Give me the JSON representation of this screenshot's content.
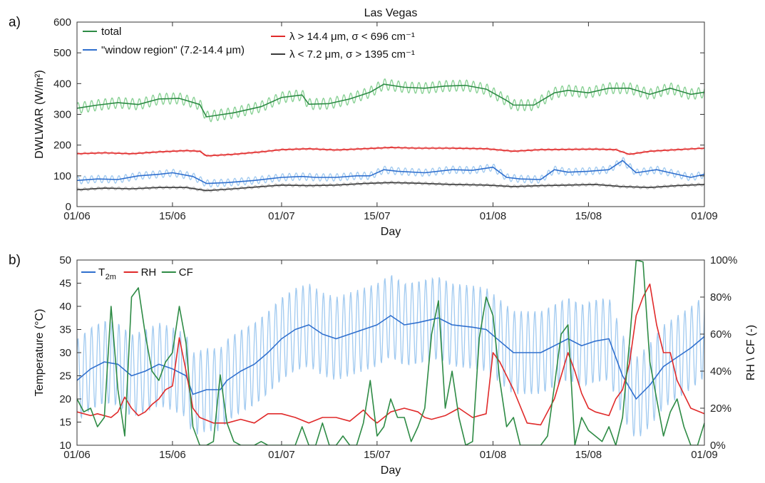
{
  "chart_data": [
    {
      "panel_label": "a)",
      "type": "line",
      "title": "Las Vegas",
      "xlabel": "Day",
      "ylabel": "DWLWAR (W/m²)",
      "xlim": [
        0,
        92
      ],
      "ylim": [
        0,
        600
      ],
      "xticks": [
        0,
        14,
        30,
        44,
        61,
        75,
        92
      ],
      "xticklabels": [
        "01/06",
        "15/06",
        "01/07",
        "15/07",
        "01/08",
        "15/08",
        "01/09"
      ],
      "yticks": [
        0,
        100,
        200,
        300,
        400,
        500,
        600
      ],
      "grid": false,
      "legend_position": "top-left",
      "legend_columns": 2,
      "series": [
        {
          "name": "total",
          "legend_order": 0,
          "color": "#2e8b45",
          "raw_color": "#7fcd8c",
          "raw_amplitude": 18,
          "x": [
            0,
            3,
            6,
            9,
            12,
            15,
            18,
            19,
            23,
            27,
            30,
            33,
            34,
            37,
            40,
            43,
            45,
            48,
            51,
            54,
            57,
            60,
            63,
            64,
            67,
            70,
            72,
            75,
            78,
            81,
            84,
            87,
            90,
            92
          ],
          "values": [
            320,
            330,
            338,
            332,
            350,
            352,
            332,
            292,
            305,
            325,
            355,
            363,
            333,
            335,
            350,
            372,
            398,
            388,
            385,
            392,
            394,
            382,
            345,
            330,
            330,
            370,
            378,
            370,
            385,
            385,
            365,
            385,
            365,
            372
          ]
        },
        {
          "name": "\"window region\" (7.2-14.4 μm)",
          "legend_order": 1,
          "color": "#2f6fce",
          "raw_color": "#9cc7ef",
          "raw_amplitude": 12,
          "x": [
            0,
            3,
            6,
            9,
            12,
            14,
            17,
            19,
            22,
            26,
            30,
            33,
            35,
            38,
            41,
            43,
            45,
            47,
            51,
            55,
            58,
            61,
            63,
            65,
            68,
            70,
            72,
            75,
            78,
            80,
            82,
            85,
            87,
            90,
            92
          ],
          "values": [
            85,
            90,
            88,
            100,
            105,
            110,
            98,
            75,
            78,
            85,
            95,
            98,
            95,
            95,
            100,
            100,
            120,
            115,
            110,
            120,
            118,
            128,
            95,
            90,
            88,
            120,
            112,
            115,
            120,
            150,
            110,
            120,
            110,
            95,
            105
          ]
        },
        {
          "name": "λ > 14.4 μm, σ < 696 cm⁻¹",
          "legend_order": 2,
          "color": "#e02a2a",
          "raw_color": "#f4a9a9",
          "raw_amplitude": 4,
          "x": [
            0,
            4,
            8,
            12,
            16,
            18,
            19,
            23,
            27,
            30,
            34,
            38,
            42,
            46,
            50,
            55,
            60,
            64,
            68,
            72,
            76,
            79,
            81,
            84,
            88,
            92
          ],
          "values": [
            172,
            175,
            172,
            178,
            182,
            180,
            165,
            170,
            178,
            185,
            188,
            184,
            188,
            192,
            190,
            190,
            188,
            180,
            185,
            186,
            187,
            185,
            170,
            180,
            185,
            190
          ]
        },
        {
          "name": "λ < 7.2 μm, σ > 1395 cm⁻¹",
          "legend_order": 3,
          "color": "#3a3a3a",
          "raw_color": "#bbbbbb",
          "raw_amplitude": 5,
          "x": [
            0,
            4,
            8,
            12,
            16,
            19,
            23,
            27,
            30,
            34,
            38,
            42,
            46,
            50,
            55,
            60,
            64,
            68,
            72,
            76,
            80,
            84,
            88,
            92
          ],
          "values": [
            55,
            60,
            58,
            62,
            62,
            52,
            58,
            65,
            70,
            68,
            70,
            75,
            78,
            76,
            72,
            70,
            65,
            68,
            70,
            72,
            65,
            62,
            68,
            72
          ]
        }
      ]
    },
    {
      "panel_label": "b)",
      "type": "line",
      "xlabel": "Day",
      "ylabel": "Temperature (°C)",
      "ylabel_right": "RH \\ CF (-)",
      "xlim": [
        0,
        92
      ],
      "ylim": [
        10,
        50
      ],
      "ylim_right": [
        0,
        100
      ],
      "xticks": [
        0,
        14,
        30,
        44,
        61,
        75,
        92
      ],
      "xticklabels": [
        "01/06",
        "15/06",
        "01/07",
        "15/07",
        "01/08",
        "15/08",
        "01/09"
      ],
      "yticks": [
        10,
        15,
        20,
        25,
        30,
        35,
        40,
        45,
        50
      ],
      "yticks_right": [
        0,
        20,
        40,
        60,
        80,
        100
      ],
      "yticklabels_right": [
        "0%",
        "20%",
        "40%",
        "60%",
        "80%",
        "100%"
      ],
      "grid": false,
      "legend_position": "top-left",
      "legend_columns": 3,
      "series": [
        {
          "name": "T",
          "name_subscript": "2m",
          "axis": "left",
          "color": "#2f6fce",
          "raw_color": "#9cc7ef",
          "raw_amplitude": 9,
          "x": [
            0,
            2,
            4,
            6,
            8,
            10,
            12,
            14,
            16,
            17,
            19,
            21,
            22,
            24,
            26,
            28,
            30,
            32,
            34,
            36,
            38,
            40,
            42,
            44,
            46,
            48,
            50,
            53,
            55,
            58,
            60,
            62,
            64,
            66,
            68,
            70,
            72,
            74,
            76,
            78,
            80,
            82,
            84,
            86,
            88,
            90,
            92
          ],
          "values": [
            24,
            26.5,
            28,
            27.5,
            25,
            26,
            27.5,
            26.5,
            25,
            21,
            22,
            22,
            24,
            26,
            27.5,
            30,
            33,
            35,
            36,
            34,
            33,
            34,
            35,
            36,
            38,
            36,
            36.5,
            37.5,
            36,
            35.5,
            35,
            32.5,
            30,
            30,
            30,
            31.5,
            33,
            31.5,
            32.5,
            33,
            25,
            20,
            23,
            27,
            29,
            31,
            33.5
          ]
        },
        {
          "name": "RH",
          "axis": "right",
          "color": "#e02a2a",
          "x": [
            0,
            2,
            3,
            5,
            6,
            7,
            8,
            9,
            10,
            11,
            12,
            13,
            14,
            15,
            16,
            17,
            18,
            20,
            22,
            24,
            26,
            28,
            30,
            32,
            34,
            36,
            38,
            40,
            42,
            43,
            44,
            46,
            48,
            50,
            51,
            52,
            54,
            56,
            58,
            60,
            61,
            62,
            64,
            66,
            68,
            70,
            72,
            73,
            74,
            75,
            76,
            78,
            79,
            80,
            81,
            82,
            83,
            84,
            85,
            86,
            87,
            88,
            90,
            92
          ],
          "values": [
            18,
            16,
            17,
            15,
            18,
            26,
            20,
            16,
            18,
            22,
            25,
            30,
            32,
            58,
            40,
            20,
            15,
            12,
            12,
            14,
            12,
            17,
            17,
            15,
            12,
            15,
            15,
            13,
            19,
            15,
            12,
            18,
            20,
            18,
            15,
            14,
            16,
            20,
            15,
            17,
            50,
            45,
            30,
            12,
            11,
            25,
            50,
            40,
            28,
            20,
            18,
            16,
            25,
            30,
            44,
            70,
            80,
            87,
            65,
            50,
            50,
            35,
            20,
            17
          ]
        },
        {
          "name": "CF",
          "axis": "right",
          "color": "#2e8b45",
          "x": [
            0,
            1,
            2,
            3,
            4,
            5,
            6,
            7,
            8,
            9,
            10,
            11,
            12,
            13,
            14,
            15,
            16,
            17,
            18,
            19,
            20,
            21,
            22,
            23,
            24,
            25,
            26,
            27,
            28,
            29,
            30,
            31,
            32,
            33,
            34,
            35,
            36,
            37,
            38,
            39,
            40,
            41,
            42,
            43,
            44,
            45,
            46,
            47,
            48,
            49,
            50,
            51,
            52,
            53,
            54,
            55,
            56,
            57,
            58,
            59,
            60,
            61,
            62,
            63,
            64,
            65,
            66,
            67,
            68,
            69,
            70,
            71,
            72,
            73,
            74,
            75,
            76,
            77,
            78,
            79,
            80,
            81,
            82,
            83,
            84,
            85,
            86,
            87,
            88,
            89,
            90,
            91,
            92
          ],
          "values": [
            25,
            18,
            20,
            10,
            15,
            75,
            30,
            5,
            80,
            85,
            60,
            40,
            35,
            45,
            50,
            75,
            55,
            10,
            0,
            0,
            2,
            38,
            12,
            2,
            0,
            0,
            0,
            2,
            0,
            0,
            0,
            0,
            0,
            10,
            0,
            0,
            12,
            0,
            0,
            5,
            0,
            0,
            12,
            35,
            5,
            10,
            25,
            15,
            15,
            2,
            10,
            20,
            60,
            78,
            20,
            40,
            15,
            0,
            2,
            58,
            80,
            70,
            35,
            10,
            15,
            0,
            0,
            0,
            0,
            5,
            32,
            60,
            65,
            0,
            15,
            8,
            5,
            2,
            10,
            0,
            15,
            55,
            100,
            99,
            45,
            25,
            5,
            18,
            25,
            10,
            0,
            0,
            12
          ]
        }
      ]
    }
  ]
}
